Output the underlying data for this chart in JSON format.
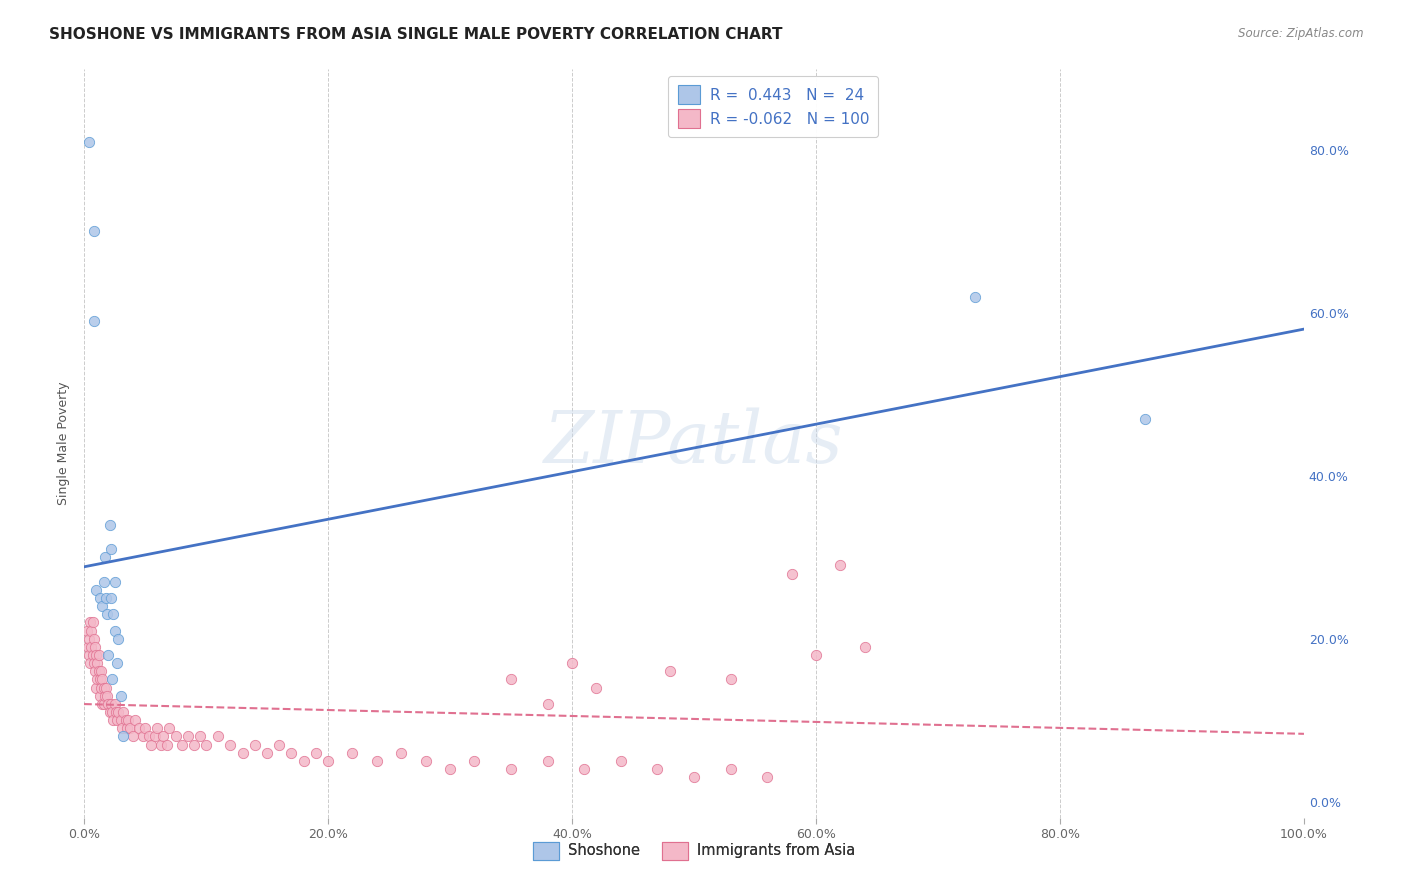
{
  "title": "SHOSHONE VS IMMIGRANTS FROM ASIA SINGLE MALE POVERTY CORRELATION CHART",
  "source": "Source: ZipAtlas.com",
  "ylabel": "Single Male Poverty",
  "watermark": "ZIPatlas",
  "shoshone_R": 0.443,
  "shoshone_N": 24,
  "immigrants_R": -0.062,
  "immigrants_N": 100,
  "shoshone_color": "#aec6e8",
  "shoshone_edge_color": "#5b9bd5",
  "shoshone_line_color": "#4472c4",
  "immigrants_color": "#f4b8c8",
  "immigrants_edge_color": "#e07090",
  "immigrants_line_color": "#e07090",
  "shoshone_x": [
    0.004,
    0.008,
    0.008,
    0.01,
    0.013,
    0.015,
    0.016,
    0.017,
    0.018,
    0.019,
    0.02,
    0.021,
    0.022,
    0.022,
    0.023,
    0.024,
    0.025,
    0.025,
    0.027,
    0.028,
    0.03,
    0.032,
    0.73,
    0.87
  ],
  "shoshone_y": [
    0.81,
    0.7,
    0.59,
    0.26,
    0.25,
    0.24,
    0.27,
    0.3,
    0.25,
    0.23,
    0.18,
    0.34,
    0.31,
    0.25,
    0.15,
    0.23,
    0.27,
    0.21,
    0.17,
    0.2,
    0.13,
    0.08,
    0.62,
    0.47
  ],
  "immigrants_x": [
    0.002,
    0.003,
    0.004,
    0.004,
    0.005,
    0.005,
    0.006,
    0.006,
    0.007,
    0.007,
    0.008,
    0.008,
    0.009,
    0.009,
    0.01,
    0.01,
    0.011,
    0.011,
    0.012,
    0.012,
    0.013,
    0.013,
    0.014,
    0.014,
    0.015,
    0.015,
    0.016,
    0.016,
    0.017,
    0.018,
    0.019,
    0.02,
    0.021,
    0.022,
    0.023,
    0.024,
    0.025,
    0.026,
    0.027,
    0.028,
    0.03,
    0.031,
    0.032,
    0.034,
    0.035,
    0.036,
    0.038,
    0.04,
    0.042,
    0.045,
    0.048,
    0.05,
    0.053,
    0.055,
    0.058,
    0.06,
    0.063,
    0.065,
    0.068,
    0.07,
    0.075,
    0.08,
    0.085,
    0.09,
    0.095,
    0.1,
    0.11,
    0.12,
    0.13,
    0.14,
    0.15,
    0.16,
    0.17,
    0.18,
    0.19,
    0.2,
    0.22,
    0.24,
    0.26,
    0.28,
    0.3,
    0.32,
    0.35,
    0.38,
    0.41,
    0.44,
    0.47,
    0.5,
    0.53,
    0.56,
    0.58,
    0.6,
    0.62,
    0.64,
    0.48,
    0.53,
    0.4,
    0.42,
    0.35,
    0.38
  ],
  "immigrants_y": [
    0.21,
    0.19,
    0.18,
    0.2,
    0.22,
    0.17,
    0.19,
    0.21,
    0.18,
    0.22,
    0.2,
    0.17,
    0.19,
    0.16,
    0.18,
    0.14,
    0.17,
    0.15,
    0.16,
    0.18,
    0.15,
    0.13,
    0.16,
    0.14,
    0.15,
    0.12,
    0.14,
    0.12,
    0.13,
    0.14,
    0.13,
    0.12,
    0.11,
    0.12,
    0.11,
    0.1,
    0.12,
    0.11,
    0.1,
    0.11,
    0.1,
    0.09,
    0.11,
    0.1,
    0.09,
    0.1,
    0.09,
    0.08,
    0.1,
    0.09,
    0.08,
    0.09,
    0.08,
    0.07,
    0.08,
    0.09,
    0.07,
    0.08,
    0.07,
    0.09,
    0.08,
    0.07,
    0.08,
    0.07,
    0.08,
    0.07,
    0.08,
    0.07,
    0.06,
    0.07,
    0.06,
    0.07,
    0.06,
    0.05,
    0.06,
    0.05,
    0.06,
    0.05,
    0.06,
    0.05,
    0.04,
    0.05,
    0.04,
    0.05,
    0.04,
    0.05,
    0.04,
    0.03,
    0.04,
    0.03,
    0.28,
    0.18,
    0.29,
    0.19,
    0.16,
    0.15,
    0.17,
    0.14,
    0.15,
    0.12
  ],
  "xlim": [
    0.0,
    1.0
  ],
  "ylim": [
    -0.02,
    0.9
  ],
  "xticks": [
    0.0,
    0.2,
    0.4,
    0.6,
    0.8,
    1.0
  ],
  "xtick_labels": [
    "0.0%",
    "20.0%",
    "40.0%",
    "60.0%",
    "80.0%",
    "100.0%"
  ],
  "yticks_right": [
    0.0,
    0.2,
    0.4,
    0.6,
    0.8
  ],
  "ytick_labels_right": [
    "0.0%",
    "20.0%",
    "40.0%",
    "60.0%",
    "80.0%"
  ],
  "grid_color": "#cccccc",
  "background_color": "#ffffff",
  "title_fontsize": 11,
  "axis_label_fontsize": 9,
  "tick_fontsize": 9,
  "value_color": "#4472c4",
  "label_color": "#333333"
}
